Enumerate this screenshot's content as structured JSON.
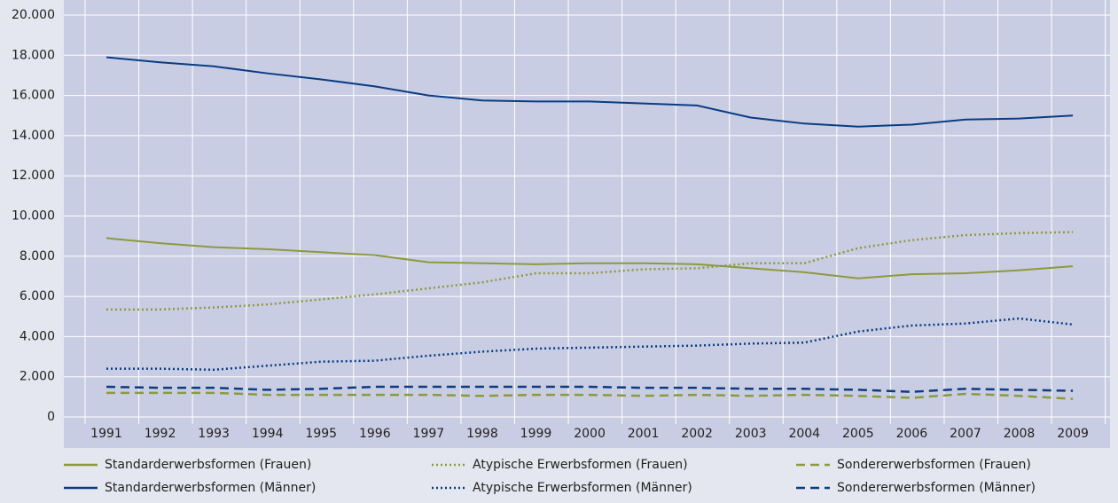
{
  "chart_data": {
    "type": "line",
    "categories": [
      "1991",
      "1992",
      "1993",
      "1994",
      "1995",
      "1996",
      "1997",
      "1998",
      "1999",
      "2000",
      "2001",
      "2002",
      "2003",
      "2004",
      "2005",
      "2006",
      "2007",
      "2008",
      "2009"
    ],
    "series": [
      {
        "name": "Standarderwerbsformen (Frauen)",
        "color": "#8c9a3c",
        "style": "solid",
        "values": [
          8900,
          8650,
          8450,
          8350,
          8200,
          8050,
          7700,
          7650,
          7600,
          7650,
          7650,
          7600,
          7400,
          7200,
          6900,
          7100,
          7150,
          7300,
          7500
        ]
      },
      {
        "name": "Standarderwerbsformen (Männer)",
        "color": "#0a3c82",
        "style": "solid",
        "values": [
          17900,
          17650,
          17450,
          17100,
          16800,
          16450,
          16000,
          15750,
          15700,
          15700,
          15600,
          15500,
          14900,
          14600,
          14450,
          14550,
          14800,
          14850,
          15000
        ]
      },
      {
        "name": "Atypische Erwerbsformen (Frauen)",
        "color": "#8c9a3c",
        "style": "dotted",
        "values": [
          5350,
          5350,
          5450,
          5600,
          5850,
          6100,
          6400,
          6700,
          7150,
          7150,
          7350,
          7400,
          7650,
          7650,
          8400,
          8800,
          9050,
          9150,
          9200
        ]
      },
      {
        "name": "Atypische Erwerbsformen (Männer)",
        "color": "#0a3c82",
        "style": "dotted",
        "values": [
          2400,
          2400,
          2350,
          2550,
          2750,
          2800,
          3050,
          3250,
          3400,
          3450,
          3500,
          3550,
          3650,
          3700,
          4250,
          4550,
          4650,
          4900,
          4600
        ]
      },
      {
        "name": "Sondererwerbsformen (Frauen)",
        "color": "#8c9a3c",
        "style": "dashed",
        "values": [
          1200,
          1200,
          1200,
          1100,
          1100,
          1100,
          1100,
          1050,
          1100,
          1100,
          1050,
          1100,
          1050,
          1100,
          1050,
          950,
          1150,
          1050,
          900
        ]
      },
      {
        "name": "Sondererwerbsformen (Männer)",
        "color": "#0a3c82",
        "style": "dashed",
        "values": [
          1500,
          1450,
          1450,
          1350,
          1400,
          1500,
          1500,
          1500,
          1500,
          1500,
          1450,
          1450,
          1400,
          1400,
          1350,
          1250,
          1400,
          1350,
          1300
        ]
      }
    ],
    "ylim": [
      0,
      20000
    ],
    "yticks": [
      0,
      {
        "value": 2000,
        "label": "2.000"
      },
      {
        "value": 4000,
        "label": "4.000"
      },
      {
        "value": 6000,
        "label": "6.000"
      },
      {
        "value": 8000,
        "label": "8.000"
      },
      {
        "value": 10000,
        "label": "10.000"
      },
      {
        "value": 12000,
        "label": "12.000"
      },
      {
        "value": 14000,
        "label": "14.000"
      },
      {
        "value": 16000,
        "label": "16.000"
      },
      {
        "value": 18000,
        "label": "18.000"
      },
      {
        "value": 20000,
        "label": "20.000"
      }
    ],
    "grid": true
  }
}
